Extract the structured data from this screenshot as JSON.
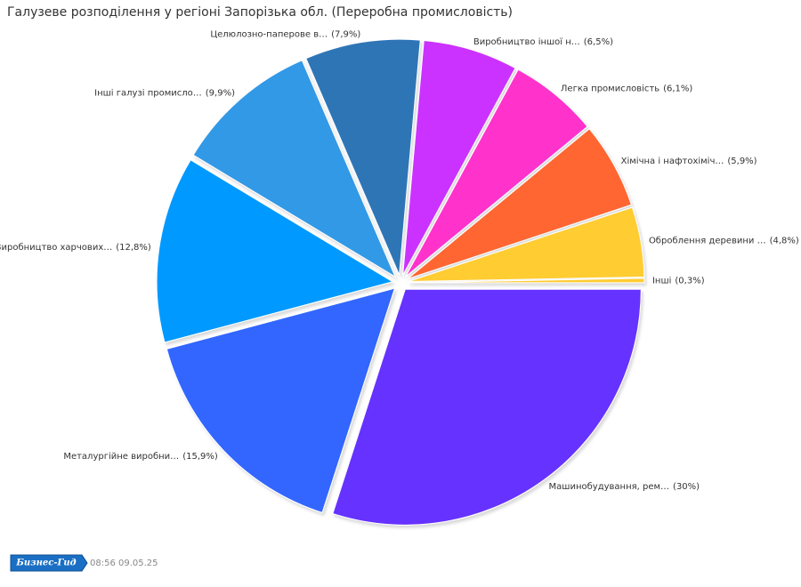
{
  "chart_data": {
    "type": "pie",
    "title": "Галузеве розподілення у регіоні Запорізька обл. (Переробна промисловість)",
    "categories": [
      "Машинобудування, рем…",
      "Металургійне виробни…",
      "Виробництво харчових…",
      "Інші галузі промисло…",
      "Целюлозно-паперове в…",
      "Виробництво іншої  н…",
      "Легка промисловість",
      "Хімічна і нафтохіміч…",
      "Оброблення деревини …",
      "Інші"
    ],
    "values": [
      30,
      15.9,
      12.8,
      9.9,
      7.9,
      6.5,
      6.1,
      5.9,
      4.8,
      0.3
    ],
    "value_labels": [
      "(30%)",
      "(15,9%)",
      "(12,8%)",
      "(9,9%)",
      "(7,9%)",
      "(6,5%)",
      "(6,1%)",
      "(5,9%)",
      "(4,8%)",
      "(0,3%)"
    ],
    "colors": [
      "#6633ff",
      "#3366ff",
      "#0099ff",
      "#3399e6",
      "#2e75b6",
      "#cc33ff",
      "#ff33cc",
      "#ff6633",
      "#ffcc33",
      "#ffcc33"
    ]
  },
  "footer": {
    "logo": "Бизнес-Гид",
    "timestamp": "08:56 09.05.25"
  }
}
